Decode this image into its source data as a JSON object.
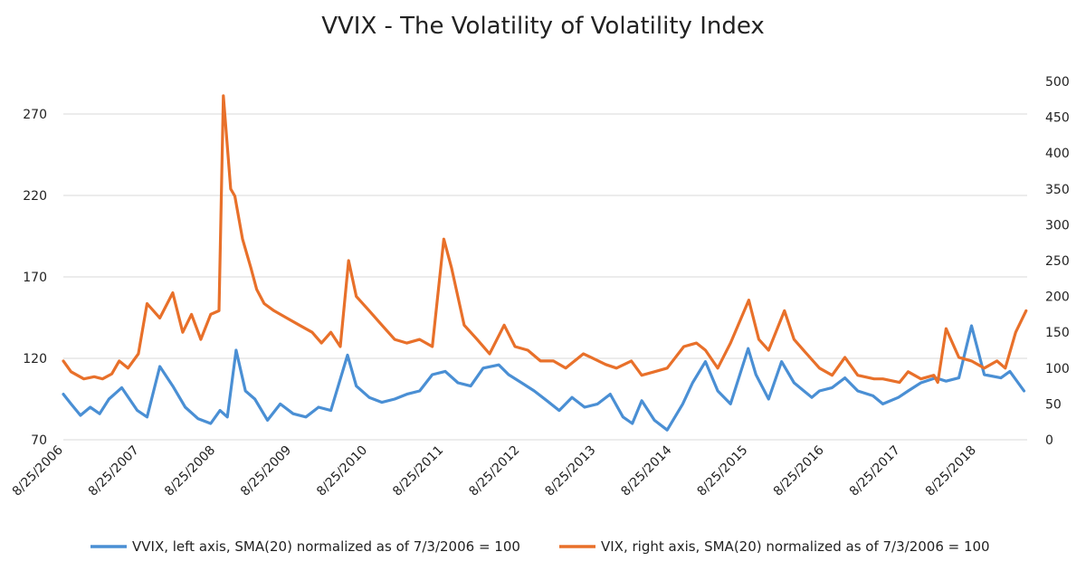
{
  "chart_data": {
    "type": "line",
    "title": "VVIX - The Volatility of Volatility Index",
    "x_tick_labels": [
      "8/25/2006",
      "8/25/2007",
      "8/25/2008",
      "8/25/2009",
      "8/25/2010",
      "8/25/2011",
      "8/25/2012",
      "8/25/2013",
      "8/25/2014",
      "8/25/2015",
      "8/25/2016",
      "8/25/2017",
      "8/25/2018"
    ],
    "x_range": [
      "2006-08-25",
      "2019-04-25"
    ],
    "y_left": {
      "min": 70,
      "max": 290,
      "ticks": [
        70,
        120,
        170,
        220,
        270
      ]
    },
    "y_right": {
      "min": 0,
      "max": 500,
      "ticks": [
        0,
        50,
        100,
        150,
        200,
        250,
        300,
        350,
        400,
        450,
        500
      ]
    },
    "gridlines": true,
    "legend_position": "bottom",
    "series": [
      {
        "name": "VVIX, left axis, SMA(20) normalized as of 7/3/2006 = 100",
        "axis": "left",
        "color": "#4a8fd4",
        "x": [
          "2006-08-25",
          "2006-10-01",
          "2006-11-15",
          "2007-01-01",
          "2007-02-15",
          "2007-04-01",
          "2007-06-01",
          "2007-08-15",
          "2007-10-01",
          "2007-12-01",
          "2008-02-01",
          "2008-04-01",
          "2008-06-01",
          "2008-08-01",
          "2008-09-15",
          "2008-10-20",
          "2008-12-01",
          "2009-01-15",
          "2009-03-01",
          "2009-05-01",
          "2009-07-01",
          "2009-09-01",
          "2009-11-01",
          "2010-01-01",
          "2010-03-01",
          "2010-05-20",
          "2010-07-01",
          "2010-09-01",
          "2010-11-01",
          "2011-01-01",
          "2011-03-01",
          "2011-05-01",
          "2011-07-01",
          "2011-09-01",
          "2011-11-01",
          "2012-01-01",
          "2012-03-01",
          "2012-05-15",
          "2012-07-01",
          "2012-09-01",
          "2012-11-01",
          "2013-01-01",
          "2013-03-01",
          "2013-05-01",
          "2013-07-01",
          "2013-09-01",
          "2013-11-01",
          "2014-01-01",
          "2014-02-15",
          "2014-04-01",
          "2014-06-01",
          "2014-08-01",
          "2014-10-15",
          "2014-12-01",
          "2015-02-01",
          "2015-04-01",
          "2015-06-01",
          "2015-08-25",
          "2015-10-01",
          "2015-12-01",
          "2016-02-01",
          "2016-04-01",
          "2016-06-25",
          "2016-08-01",
          "2016-10-01",
          "2016-12-01",
          "2017-02-01",
          "2017-04-15",
          "2017-06-01",
          "2017-08-15",
          "2017-10-01",
          "2017-12-01",
          "2018-02-10",
          "2018-04-01",
          "2018-06-01",
          "2018-08-01",
          "2018-10-01",
          "2018-12-20",
          "2019-02-01",
          "2019-04-10"
        ],
        "values": [
          98,
          92,
          85,
          90,
          86,
          95,
          102,
          88,
          84,
          115,
          103,
          90,
          83,
          80,
          88,
          84,
          125,
          100,
          95,
          82,
          92,
          86,
          84,
          90,
          88,
          122,
          103,
          96,
          93,
          95,
          98,
          100,
          110,
          112,
          105,
          103,
          114,
          116,
          110,
          105,
          100,
          94,
          88,
          96,
          90,
          92,
          98,
          84,
          80,
          94,
          82,
          76,
          92,
          105,
          118,
          100,
          92,
          126,
          110,
          95,
          118,
          105,
          96,
          100,
          102,
          108,
          100,
          97,
          92,
          96,
          100,
          105,
          108,
          106,
          108,
          140,
          110,
          108,
          112,
          100
        ]
      },
      {
        "name": "VIX, right axis, SMA(20) normalized as of 7/3/2006 = 100",
        "axis": "right",
        "color": "#e8702a",
        "x": [
          "2006-08-25",
          "2006-10-01",
          "2006-12-01",
          "2007-01-20",
          "2007-03-01",
          "2007-04-15",
          "2007-05-20",
          "2007-07-01",
          "2007-08-20",
          "2007-10-01",
          "2007-12-01",
          "2008-02-01",
          "2008-03-20",
          "2008-05-01",
          "2008-06-15",
          "2008-08-01",
          "2008-09-10",
          "2008-10-01",
          "2008-11-05",
          "2008-11-25",
          "2009-01-01",
          "2009-02-10",
          "2009-03-10",
          "2009-04-15",
          "2009-06-01",
          "2009-08-01",
          "2009-10-01",
          "2009-12-01",
          "2010-01-15",
          "2010-03-01",
          "2010-04-15",
          "2010-05-25",
          "2010-07-01",
          "2010-09-01",
          "2010-11-01",
          "2011-01-01",
          "2011-03-01",
          "2011-05-01",
          "2011-07-01",
          "2011-08-25",
          "2011-10-01",
          "2011-12-01",
          "2012-02-01",
          "2012-04-01",
          "2012-06-10",
          "2012-08-01",
          "2012-10-01",
          "2012-12-01",
          "2013-02-01",
          "2013-04-01",
          "2013-06-25",
          "2013-08-01",
          "2013-10-10",
          "2013-12-01",
          "2014-02-10",
          "2014-04-01",
          "2014-06-01",
          "2014-08-01",
          "2014-10-20",
          "2014-12-20",
          "2015-02-01",
          "2015-04-01",
          "2015-06-01",
          "2015-08-28",
          "2015-10-15",
          "2015-12-01",
          "2016-02-15",
          "2016-04-01",
          "2016-06-01",
          "2016-08-01",
          "2016-10-01",
          "2016-12-01",
          "2017-02-01",
          "2017-04-20",
          "2017-06-01",
          "2017-08-20",
          "2017-10-01",
          "2017-12-01",
          "2018-02-01",
          "2018-02-20",
          "2018-04-01",
          "2018-06-01",
          "2018-08-01",
          "2018-10-01",
          "2018-12-01",
          "2019-01-10",
          "2019-03-01",
          "2019-04-20"
        ],
        "values": [
          110,
          95,
          85,
          88,
          85,
          92,
          110,
          100,
          120,
          190,
          170,
          205,
          150,
          175,
          140,
          175,
          180,
          480,
          350,
          340,
          280,
          240,
          210,
          190,
          180,
          170,
          160,
          150,
          135,
          150,
          130,
          250,
          200,
          180,
          160,
          140,
          135,
          140,
          130,
          280,
          240,
          160,
          140,
          120,
          160,
          130,
          125,
          110,
          110,
          100,
          120,
          115,
          105,
          100,
          110,
          90,
          95,
          100,
          130,
          135,
          125,
          100,
          135,
          195,
          140,
          125,
          180,
          140,
          120,
          100,
          90,
          115,
          90,
          85,
          85,
          80,
          95,
          85,
          90,
          80,
          155,
          115,
          110,
          100,
          110,
          100,
          150,
          180
        ]
      }
    ]
  }
}
